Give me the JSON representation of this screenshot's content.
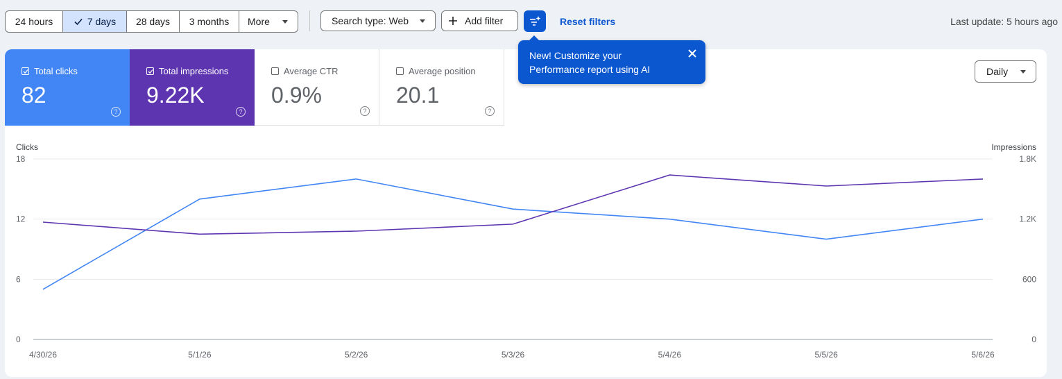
{
  "toolbar": {
    "ranges": [
      {
        "label": "24 hours",
        "selected": false
      },
      {
        "label": "7 days",
        "selected": true
      },
      {
        "label": "28 days",
        "selected": false
      },
      {
        "label": "3 months",
        "selected": false
      },
      {
        "label": "More",
        "selected": false
      }
    ],
    "search_type_label": "Search type: Web",
    "add_filter_label": "Add filter",
    "reset_filters_label": "Reset filters",
    "last_update": "Last update: 5 hours ago"
  },
  "metrics": {
    "clicks": {
      "label": "Total clicks",
      "value": "82",
      "checked": true
    },
    "impressions": {
      "label": "Total impressions",
      "value": "9.22K",
      "checked": true
    },
    "ctr": {
      "label": "Average CTR",
      "value": "0.9%",
      "checked": false
    },
    "position": {
      "label": "Average position",
      "value": "20.1",
      "checked": false
    }
  },
  "granularity": "Daily",
  "tooltip": {
    "text": "New! Customize your Performance report using AI"
  },
  "colors": {
    "clicks": "#4285f4",
    "impressions": "#5e35b1",
    "accent": "#0b57d0"
  },
  "chart_data": {
    "type": "line",
    "x": [
      "4/30/26",
      "5/1/26",
      "5/2/26",
      "5/3/26",
      "5/4/26",
      "5/5/26",
      "5/6/26"
    ],
    "series": [
      {
        "name": "Clicks",
        "axis": "left",
        "values": [
          5,
          14,
          16,
          13,
          12,
          10,
          12
        ]
      },
      {
        "name": "Impressions",
        "axis": "right",
        "values": [
          1170,
          1050,
          1080,
          1150,
          1640,
          1530,
          1600
        ]
      }
    ],
    "ylabel": "Clicks",
    "y2label": "Impressions",
    "ylim": [
      0,
      18
    ],
    "y2lim": [
      0,
      1800
    ],
    "yticks": [
      "0",
      "6",
      "12",
      "18"
    ],
    "y2ticks": [
      "0",
      "600",
      "1.2K",
      "1.8K"
    ],
    "grid": true
  }
}
